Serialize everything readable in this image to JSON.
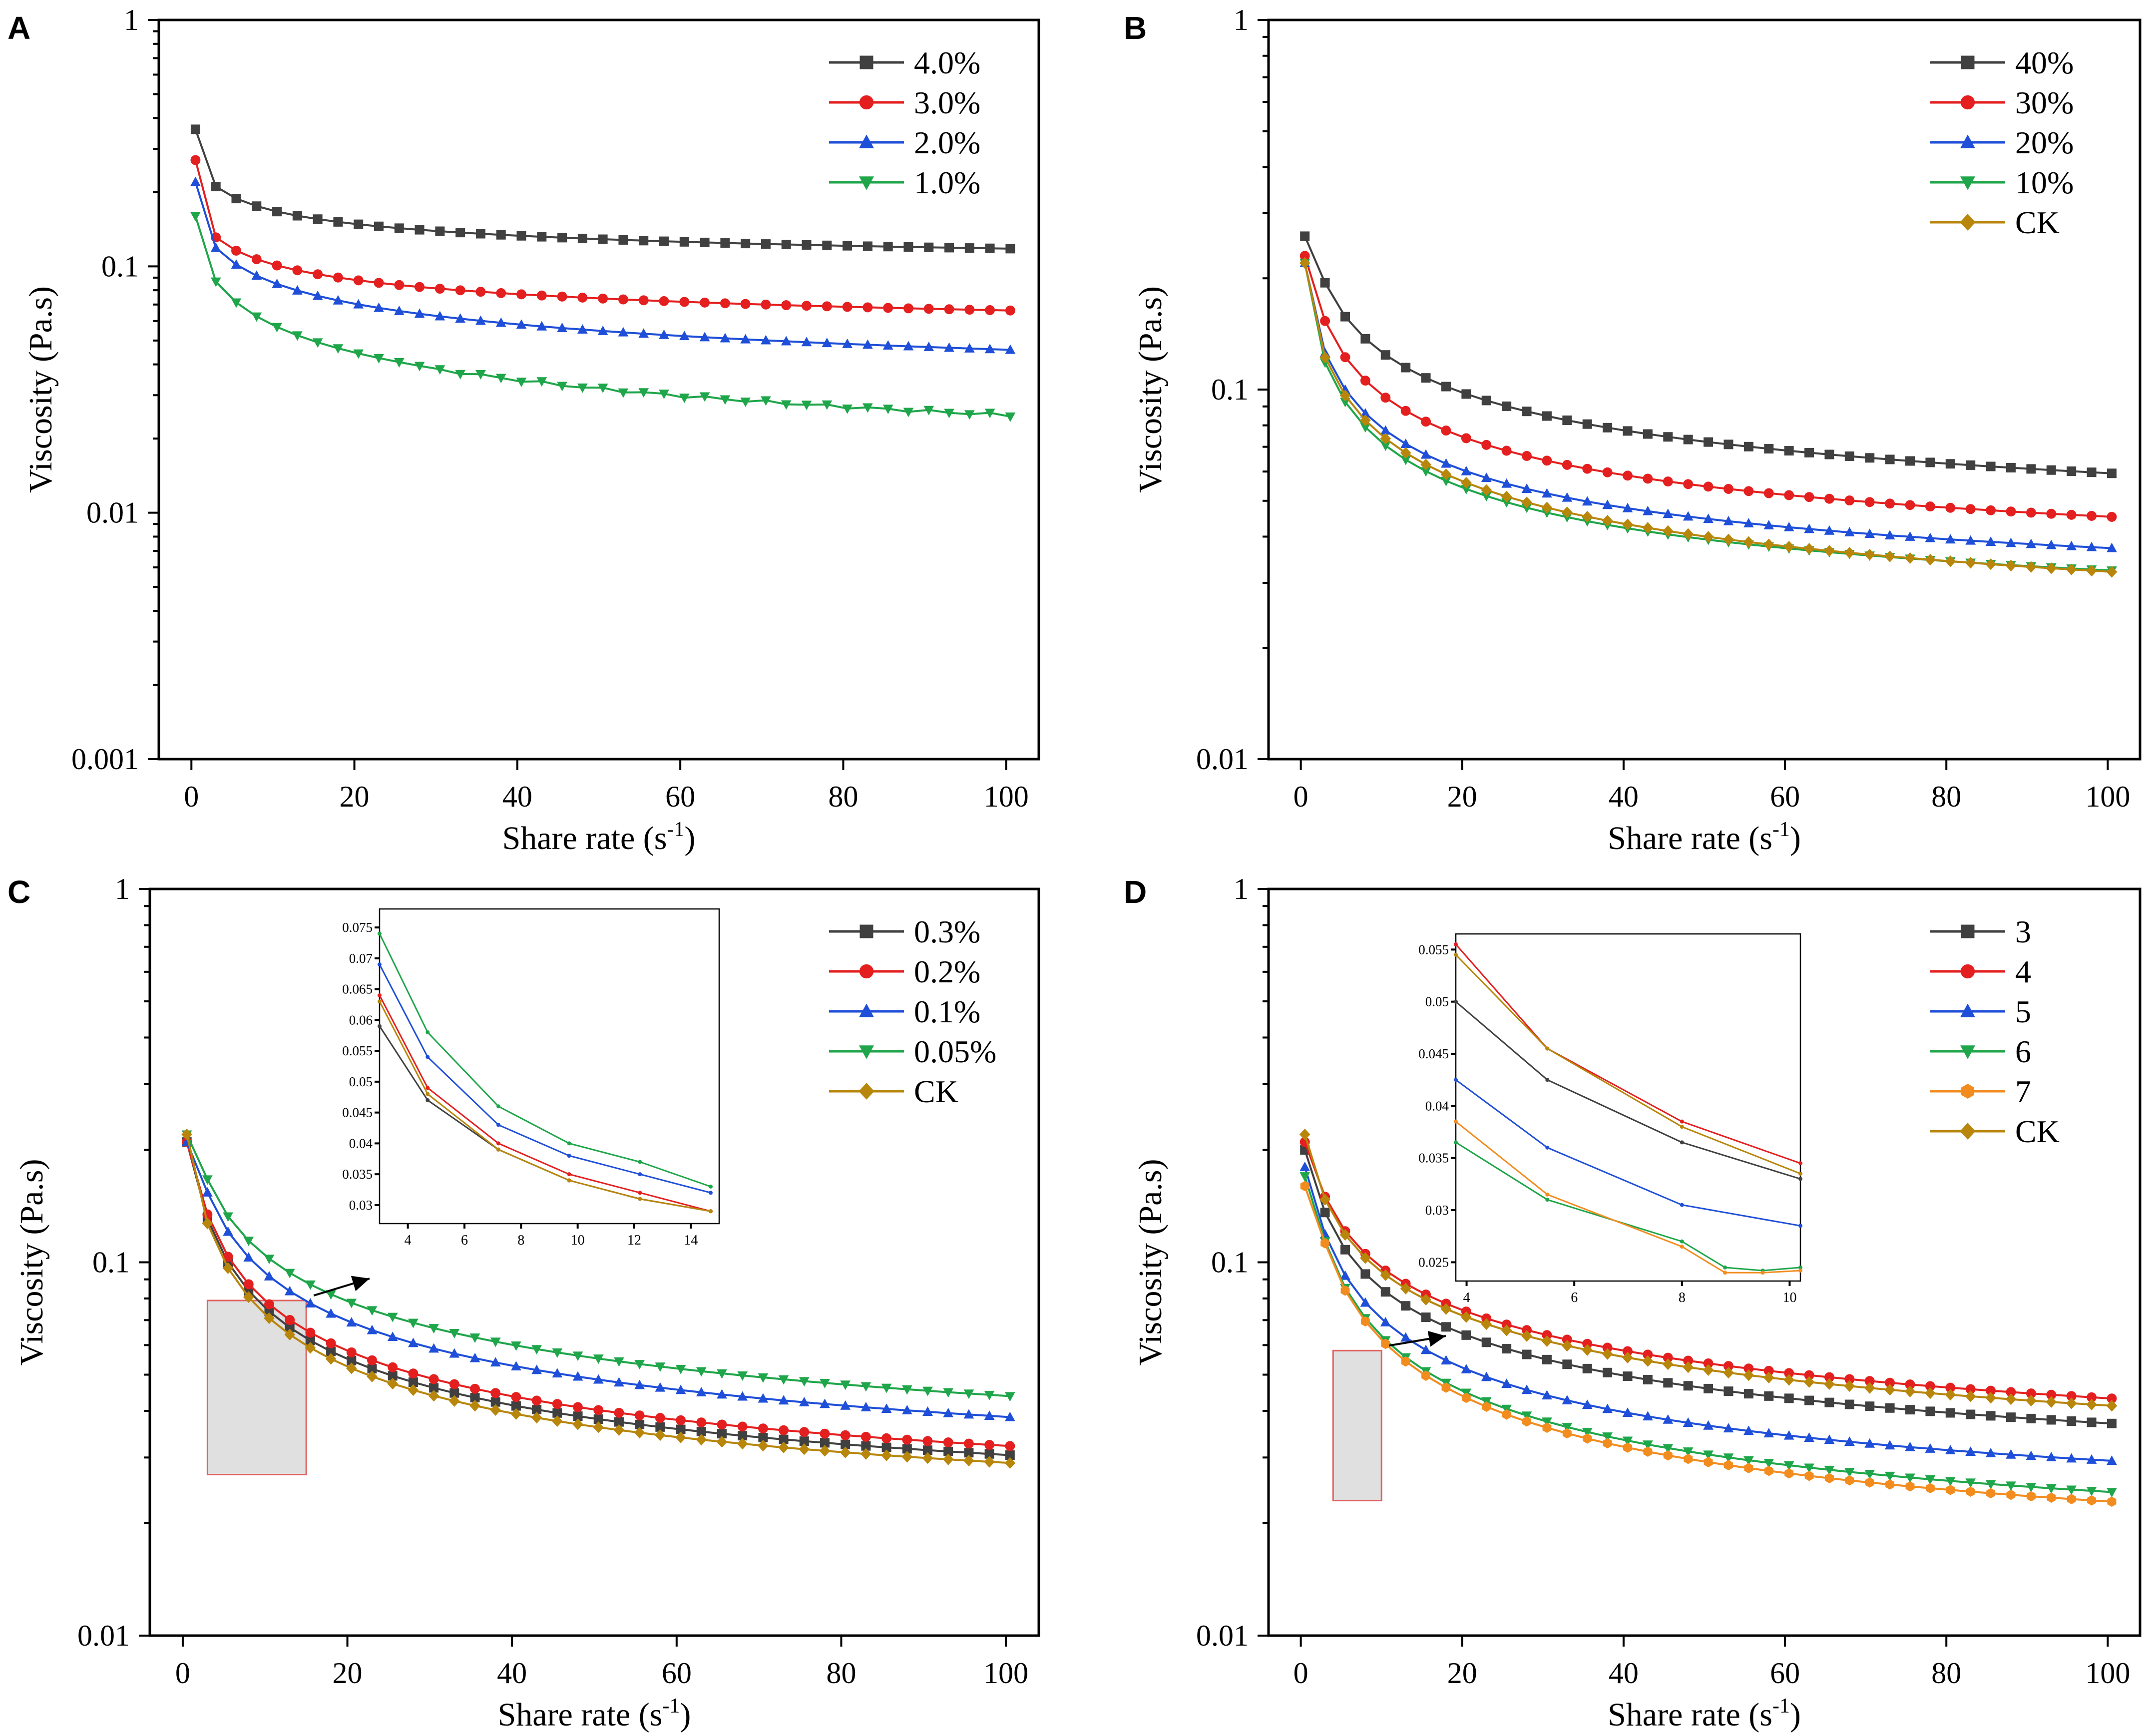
{
  "chart_data": [
    {
      "panel": "A",
      "type": "line",
      "xlabel": "Share rate (s",
      "xlabel_sup": "-1",
      "xlabel_end": ")",
      "ylabel": "Viscosity (Pa.s)",
      "yscale": "log",
      "xlim": [
        -4,
        104
      ],
      "ylim": [
        0.001,
        1
      ],
      "xticks": [
        0,
        20,
        40,
        60,
        80,
        100
      ],
      "xtick_labels": [
        "0",
        "20",
        "40",
        "60",
        "80",
        "100"
      ],
      "yticks": [
        0.001,
        0.01,
        0.1,
        1
      ],
      "ytick_labels": [
        "0.001",
        "0.01",
        "0.1",
        "1"
      ],
      "legend_position": "top-right",
      "series": [
        {
          "name": "4.0%",
          "color": "#404040",
          "marker": "square",
          "x0": 0.5,
          "dx": 2.5,
          "n": 41,
          "v0": 0.36,
          "v_inf": 0.085,
          "amp": 0.23,
          "k": 0.42,
          "noise": 0
        },
        {
          "name": "3.0%",
          "color": "#e41f1f",
          "marker": "circle",
          "x0": 0.5,
          "dx": 2.5,
          "n": 41,
          "v0": 0.27,
          "v_inf": 0.041,
          "amp": 0.16,
          "k": 0.4,
          "noise": 0
        },
        {
          "name": "2.0%",
          "color": "#1f4fd8",
          "marker": "triangle-up",
          "x0": 0.5,
          "dx": 2.5,
          "n": 41,
          "v0": 0.22,
          "v_inf": 0.0175,
          "amp": 0.18,
          "k": 0.4,
          "noise": 0
        },
        {
          "name": "1.0%",
          "color": "#1fa64a",
          "marker": "triangle-down",
          "x0": 0.5,
          "dx": 2.5,
          "n": 41,
          "v0": 0.16,
          "v_inf": 0.0055,
          "amp": 0.155,
          "k": 0.45,
          "noise": 0.06
        }
      ]
    },
    {
      "panel": "B",
      "type": "line",
      "xlabel": "Share rate (s",
      "xlabel_sup": "-1",
      "xlabel_end": ")",
      "ylabel": "Viscosity (Pa.s)",
      "yscale": "log",
      "xlim": [
        -4,
        104
      ],
      "ylim": [
        0.01,
        1
      ],
      "xticks": [
        0,
        20,
        40,
        60,
        80,
        100
      ],
      "xtick_labels": [
        "0",
        "20",
        "40",
        "60",
        "80",
        "100"
      ],
      "yticks": [
        0.01,
        0.1,
        1
      ],
      "ytick_labels": [
        "0.01",
        "0.1",
        "1"
      ],
      "legend_position": "top-right",
      "series": [
        {
          "name": "40%",
          "color": "#404040",
          "marker": "square",
          "x0": 0.5,
          "dx": 2.5,
          "n": 41,
          "v0": 0.26,
          "v_inf": 0.031,
          "amp": 0.36,
          "k": 0.55,
          "noise": 0
        },
        {
          "name": "30%",
          "color": "#e41f1f",
          "marker": "circle",
          "x0": 0.5,
          "dx": 2.5,
          "n": 41,
          "v0": 0.23,
          "v_inf": 0.0265,
          "amp": 0.3,
          "k": 0.6,
          "noise": 0
        },
        {
          "name": "20%",
          "color": "#1f4fd8",
          "marker": "triangle-up",
          "x0": 0.5,
          "dx": 2.5,
          "n": 41,
          "v0": 0.22,
          "v_inf": 0.023,
          "amp": 0.25,
          "k": 0.62,
          "noise": 0
        },
        {
          "name": "10%",
          "color": "#1fa64a",
          "marker": "triangle-down",
          "x0": 0.5,
          "dx": 2.5,
          "n": 41,
          "v0": 0.22,
          "v_inf": 0.02,
          "amp": 0.25,
          "k": 0.65,
          "noise": 0
        },
        {
          "name": "CK",
          "color": "#b8860b",
          "marker": "diamond",
          "x0": 0.5,
          "dx": 2.5,
          "n": 41,
          "v0": 0.22,
          "v_inf": 0.0165,
          "amp": 0.25,
          "k": 0.6,
          "noise": 0
        }
      ]
    },
    {
      "panel": "C",
      "type": "line",
      "xlabel": "Share rate (s",
      "xlabel_sup": "-1",
      "xlabel_end": ")",
      "ylabel": "Viscosity (Pa.s)",
      "yscale": "log",
      "xlim": [
        -4,
        104
      ],
      "ylim": [
        0.01,
        1
      ],
      "xticks": [
        0,
        20,
        40,
        60,
        80,
        100
      ],
      "xtick_labels": [
        "0",
        "20",
        "40",
        "60",
        "80",
        "100"
      ],
      "yticks": [
        0.01,
        0.1,
        1
      ],
      "ytick_labels": [
        "0.01",
        "0.1",
        "1"
      ],
      "legend_position": "top-right",
      "series": [
        {
          "name": "0.3%",
          "color": "#404040",
          "marker": "square",
          "x0": 0.5,
          "dx": 2.5,
          "n": 41,
          "v0": 0.21,
          "v_inf": 0.0175,
          "amp": 0.3,
          "k": 0.68,
          "noise": 0
        },
        {
          "name": "0.2%",
          "color": "#e41f1f",
          "marker": "circle",
          "x0": 0.5,
          "dx": 2.5,
          "n": 41,
          "v0": 0.21,
          "v_inf": 0.018,
          "amp": 0.3,
          "k": 0.66,
          "noise": 0
        },
        {
          "name": "0.1%",
          "color": "#1f4fd8",
          "marker": "triangle-up",
          "x0": 0.5,
          "dx": 2.5,
          "n": 41,
          "v0": 0.21,
          "v_inf": 0.0185,
          "amp": 0.32,
          "k": 0.6,
          "noise": 0
        },
        {
          "name": "0.05%",
          "color": "#1fa64a",
          "marker": "triangle-down",
          "x0": 0.5,
          "dx": 2.5,
          "n": 41,
          "v0": 0.22,
          "v_inf": 0.019,
          "amp": 0.33,
          "k": 0.56,
          "noise": 0
        },
        {
          "name": "CK",
          "color": "#b8860b",
          "marker": "diamond",
          "x0": 0.5,
          "dx": 2.5,
          "n": 41,
          "v0": 0.22,
          "v_inf": 0.0172,
          "amp": 0.3,
          "k": 0.7,
          "noise": 0
        }
      ],
      "zoom_region": {
        "x": [
          3,
          15
        ],
        "y": [
          0.027,
          0.079
        ]
      },
      "inset": {
        "xlim": [
          3,
          15
        ],
        "ylim": [
          0.027,
          0.078
        ],
        "xticks": [
          4,
          6,
          8,
          10,
          12,
          14
        ],
        "xtick_labels": [
          "4",
          "6",
          "8",
          "10",
          "12",
          "14"
        ],
        "yticks": [
          0.03,
          0.035,
          0.04,
          0.045,
          0.05,
          0.055,
          0.06,
          0.065,
          0.07,
          0.075
        ],
        "ytick_labels": [
          "0.03",
          "0.035",
          "0.04",
          "0.045",
          "0.05",
          "0.055",
          "0.06",
          "0.065",
          "0.07",
          "0.075"
        ],
        "series": [
          {
            "name": "0.3%",
            "x": [
              3,
              4.7,
              7.2,
              9.7,
              12.2,
              14.7
            ],
            "y": [
              0.059,
              0.047,
              0.039,
              0.034,
              0.031,
              0.029
            ]
          },
          {
            "name": "0.2%",
            "x": [
              3,
              4.7,
              7.2,
              9.7,
              12.2,
              14.7
            ],
            "y": [
              0.064,
              0.049,
              0.04,
              0.035,
              0.032,
              0.029
            ]
          },
          {
            "name": "0.1%",
            "x": [
              3,
              4.7,
              7.2,
              9.7,
              12.2,
              14.7
            ],
            "y": [
              0.069,
              0.054,
              0.043,
              0.038,
              0.035,
              0.032
            ]
          },
          {
            "name": "0.05%",
            "x": [
              3,
              4.7,
              7.2,
              9.7,
              12.2,
              14.7
            ],
            "y": [
              0.074,
              0.058,
              0.046,
              0.04,
              0.037,
              0.033
            ]
          },
          {
            "name": "CK",
            "x": [
              3,
              4.7,
              7.2,
              9.7,
              12.2,
              14.7
            ],
            "y": [
              0.063,
              0.048,
              0.039,
              0.034,
              0.031,
              0.029
            ]
          }
        ]
      }
    },
    {
      "panel": "D",
      "type": "line",
      "xlabel": "Share rate (s",
      "xlabel_sup": "-1",
      "xlabel_end": ")",
      "ylabel": "Viscosity (Pa.s)",
      "yscale": "log",
      "xlim": [
        -4,
        104
      ],
      "ylim": [
        0.01,
        1
      ],
      "xticks": [
        0,
        20,
        40,
        60,
        80,
        100
      ],
      "xtick_labels": [
        "0",
        "20",
        "40",
        "60",
        "80",
        "100"
      ],
      "yticks": [
        0.01,
        0.1,
        1
      ],
      "ytick_labels": [
        "0.01",
        "0.1",
        "1"
      ],
      "legend_position": "top-right",
      "series": [
        {
          "name": "3",
          "color": "#404040",
          "marker": "square",
          "x0": 0.5,
          "dx": 2.5,
          "n": 41,
          "v0": 0.2,
          "v_inf": 0.0185,
          "amp": 0.27,
          "k": 0.58,
          "noise": 0
        },
        {
          "name": "4",
          "color": "#e41f1f",
          "marker": "circle",
          "x0": 0.5,
          "dx": 2.5,
          "n": 41,
          "v0": 0.21,
          "v_inf": 0.019,
          "amp": 0.28,
          "k": 0.53,
          "noise": 0
        },
        {
          "name": "5",
          "color": "#1f4fd8",
          "marker": "triangle-up",
          "x0": 0.5,
          "dx": 2.5,
          "n": 41,
          "v0": 0.18,
          "v_inf": 0.0165,
          "amp": 0.26,
          "k": 0.65,
          "noise": 0
        },
        {
          "name": "6",
          "color": "#1fa64a",
          "marker": "triangle-down",
          "x0": 0.5,
          "dx": 2.5,
          "n": 41,
          "v0": 0.17,
          "v_inf": 0.0142,
          "amp": 0.28,
          "k": 0.72,
          "noise": 0
        },
        {
          "name": "7",
          "color": "#f28c1f",
          "marker": "hexagon",
          "x0": 0.5,
          "dx": 2.5,
          "n": 41,
          "v0": 0.16,
          "v_inf": 0.0128,
          "amp": 0.28,
          "k": 0.72,
          "noise": 0
        },
        {
          "name": "CK",
          "color": "#b8860b",
          "marker": "diamond",
          "x0": 0.5,
          "dx": 2.5,
          "n": 41,
          "v0": 0.22,
          "v_inf": 0.0182,
          "amp": 0.28,
          "k": 0.54,
          "noise": 0
        }
      ],
      "zoom_region": {
        "x": [
          4,
          10
        ],
        "y": [
          0.023,
          0.058
        ]
      },
      "inset": {
        "xlim": [
          3.8,
          10.2
        ],
        "ylim": [
          0.0232,
          0.0565
        ],
        "xticks": [
          4,
          6,
          8,
          10
        ],
        "xtick_labels": [
          "4",
          "6",
          "8",
          "10"
        ],
        "yticks": [
          0.025,
          0.03,
          0.035,
          0.04,
          0.045,
          0.05,
          0.055
        ],
        "ytick_labels": [
          "0.025",
          "0.03",
          "0.035",
          "0.04",
          "0.045",
          "0.05",
          "0.055"
        ],
        "series": [
          {
            "name": "3",
            "x": [
              3.8,
              5.5,
              8.0,
              10.2
            ],
            "y": [
              0.05,
              0.0425,
              0.0365,
              0.033
            ]
          },
          {
            "name": "4",
            "x": [
              3.8,
              5.5,
              8.0,
              10.2
            ],
            "y": [
              0.0555,
              0.0455,
              0.0385,
              0.0345
            ]
          },
          {
            "name": "5",
            "x": [
              3.8,
              5.5,
              8.0,
              10.2
            ],
            "y": [
              0.0425,
              0.036,
              0.0305,
              0.0285
            ]
          },
          {
            "name": "6",
            "x": [
              3.8,
              5.5,
              8.0,
              8.8,
              9.5,
              10.2
            ],
            "y": [
              0.0365,
              0.031,
              0.027,
              0.0245,
              0.0242,
              0.0245
            ]
          },
          {
            "name": "7",
            "x": [
              3.8,
              5.5,
              8.0,
              8.8,
              9.5,
              10.2
            ],
            "y": [
              0.0385,
              0.0315,
              0.0265,
              0.024,
              0.024,
              0.0242
            ]
          },
          {
            "name": "CK",
            "x": [
              3.8,
              5.5,
              8.0,
              10.2
            ],
            "y": [
              0.0545,
              0.0455,
              0.038,
              0.0335
            ]
          }
        ]
      }
    }
  ]
}
